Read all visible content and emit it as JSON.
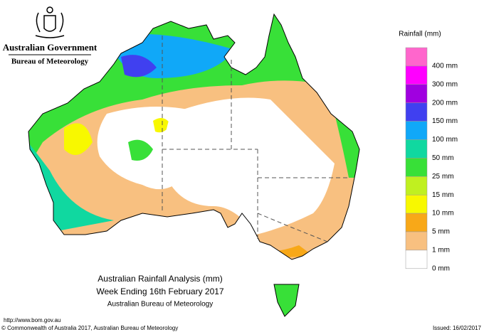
{
  "header": {
    "government": "Australian Government",
    "agency": "Bureau of Meteorology"
  },
  "legend": {
    "title": "Rainfall (mm)",
    "items": [
      {
        "label": "400 mm",
        "color": "#ff66cc"
      },
      {
        "label": "300 mm",
        "color": "#ff00ff"
      },
      {
        "label": "200 mm",
        "color": "#a000e0"
      },
      {
        "label": "150 mm",
        "color": "#4040f0"
      },
      {
        "label": "100 mm",
        "color": "#10a8f8"
      },
      {
        "label": "50 mm",
        "color": "#10d8a0"
      },
      {
        "label": "25 mm",
        "color": "#38e038"
      },
      {
        "label": "15 mm",
        "color": "#c0f020"
      },
      {
        "label": "10 mm",
        "color": "#f8f800"
      },
      {
        "label": "5 mm",
        "color": "#f8a818"
      },
      {
        "label": "1 mm",
        "color": "#f8c080"
      },
      {
        "label": "0 mm",
        "color": "#ffffff"
      }
    ]
  },
  "map_title": {
    "line1": "Australian Rainfall Analysis (mm)",
    "line2": "Week Ending 16th February 2017",
    "line3": "Australian Bureau of Meteorology"
  },
  "footer": {
    "url": "http://www.bom.gov.au",
    "copyright": "© Commonwealth of Australia 2017, Australian Bureau of Meteorology",
    "issued": "Issued: 16/02/2017"
  }
}
